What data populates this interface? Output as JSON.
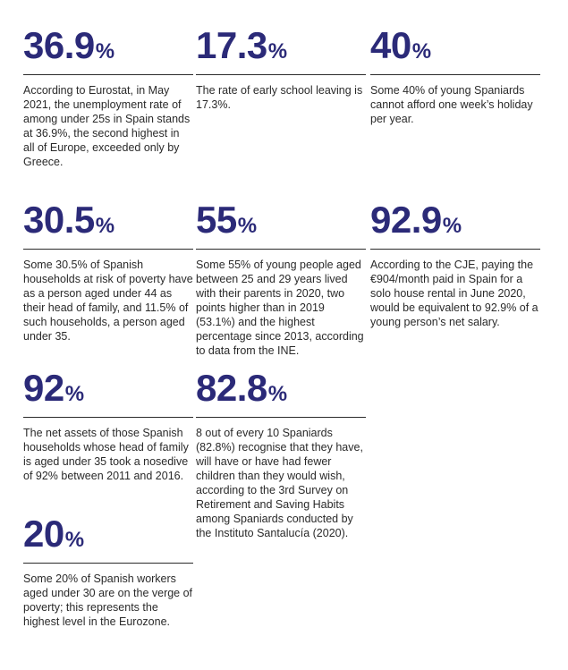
{
  "stats": [
    {
      "value": "36.9",
      "unit": "%",
      "text": "According to Eurostat, in May 2021, the unemployment rate of among under 25s in Spain stands at 36.9%, the second highest in all of Europe, exceeded only by Greece."
    },
    {
      "value": "17.3",
      "unit": "%",
      "text": "The rate of early school leaving is 17.3%."
    },
    {
      "value": "40",
      "unit": "%",
      "text": "Some 40% of young Spaniards cannot afford one week’s holiday per year."
    },
    {
      "value": "30.5",
      "unit": "%",
      "text": "Some 30.5% of Spanish households at risk of poverty have as a person aged under 44 as their head of family, and 11.5% of such households, a person aged under 35."
    },
    {
      "value": "55",
      "unit": "%",
      "text": "Some 55% of young people aged between 25 and 29 years lived with their parents in 2020, two points higher than in 2019 (53.1%) and the highest percentage since 2013, according to data from the INE."
    },
    {
      "value": "92.9",
      "unit": "%",
      "text": "According to the CJE, paying the €904/month paid in Spain for a solo house rental in June 2020, would be equivalent to 92.9% of a young person’s net salary."
    },
    {
      "value": "92",
      "unit": "%",
      "text": "The net assets of those Spanish households whose head of family is aged under 35 took a nosedive of 92% between 2011 and 2016."
    },
    {
      "value": "82.8",
      "unit": "%",
      "text": "8 out of every 10 Spaniards (82.8%) recognise that they have, will have or have had fewer children than they would wish, according to the 3rd Survey on Retirement and Saving Habits among Spaniards conducted by the Instituto Santalucía (2020)."
    },
    {
      "value": "20",
      "unit": "%",
      "text": "Some 20% of Spanish workers aged under 30 are on the verge of poverty; this represents the highest level in the Eurozone."
    }
  ],
  "colors": {
    "accent": "#2b2a78",
    "text": "#2a2a2a",
    "rule": "#2a2a2a",
    "background": "#ffffff"
  }
}
